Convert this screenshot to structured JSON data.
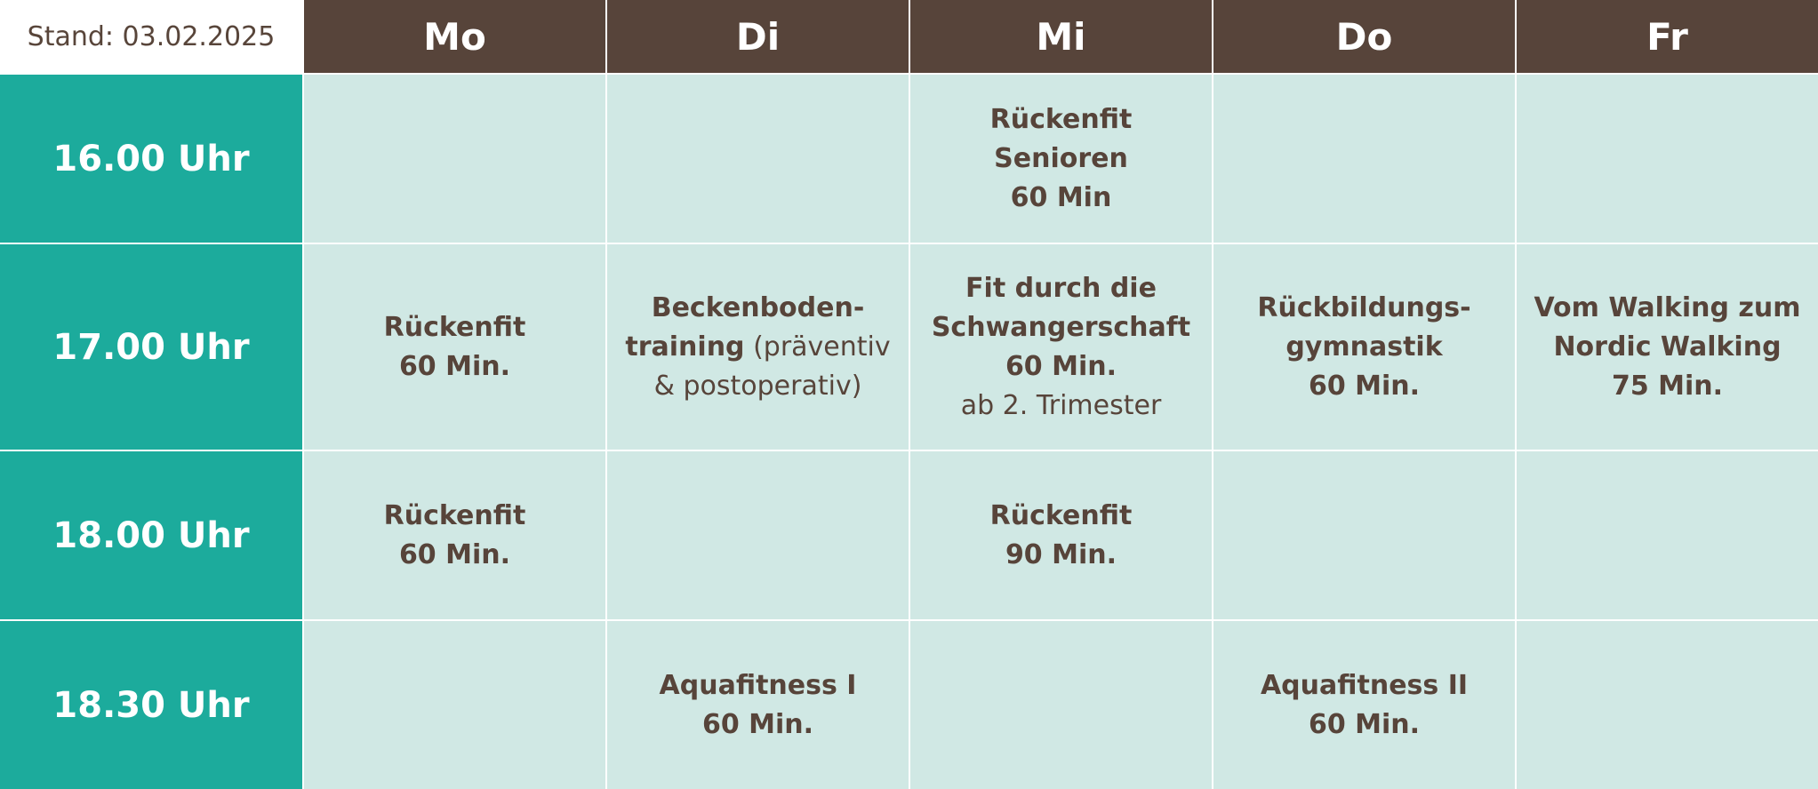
{
  "stand": "Stand: 03.02.2025",
  "days": [
    "Mo",
    "Di",
    "Mi",
    "Do",
    "Fr"
  ],
  "times": [
    "16.00 Uhr",
    "17.00 Uhr",
    "18.00 Uhr",
    "18.30 Uhr"
  ],
  "courses": {
    "r1": {
      "mi": {
        "l1": "Rückenfit",
        "l2": "Senioren",
        "l3": "60 Min"
      }
    },
    "r2": {
      "mo": {
        "l1": "Rückenfit",
        "l2": "60 Min."
      },
      "di": {
        "l1": "Beckenboden-",
        "l2a": "training",
        "l2b": " (präventiv",
        "l3": "& postoperativ)"
      },
      "mi": {
        "l1": "Fit durch die",
        "l2": "Schwangerschaft",
        "l3": "60 Min.",
        "l4": "ab 2. Trimester"
      },
      "do": {
        "l1": "Rückbildungs-",
        "l2": "gymnastik",
        "l3": "60 Min."
      },
      "fr": {
        "l1": "Vom Walking zum",
        "l2": "Nordic Walking",
        "l3": "75 Min."
      }
    },
    "r3": {
      "mo": {
        "l1": "Rückenfit",
        "l2": "60 Min."
      },
      "mi": {
        "l1": "Rückenfit",
        "l2": "90 Min."
      }
    },
    "r4": {
      "di": {
        "l1": "Aquafitness I",
        "l2": "60 Min."
      },
      "do": {
        "l1": "Aquafitness II",
        "l2": "60 Min."
      }
    }
  },
  "colors": {
    "header": "#57443a",
    "time": "#1cab9c",
    "cell": "#d0e8e4",
    "text": "#57443a"
  }
}
